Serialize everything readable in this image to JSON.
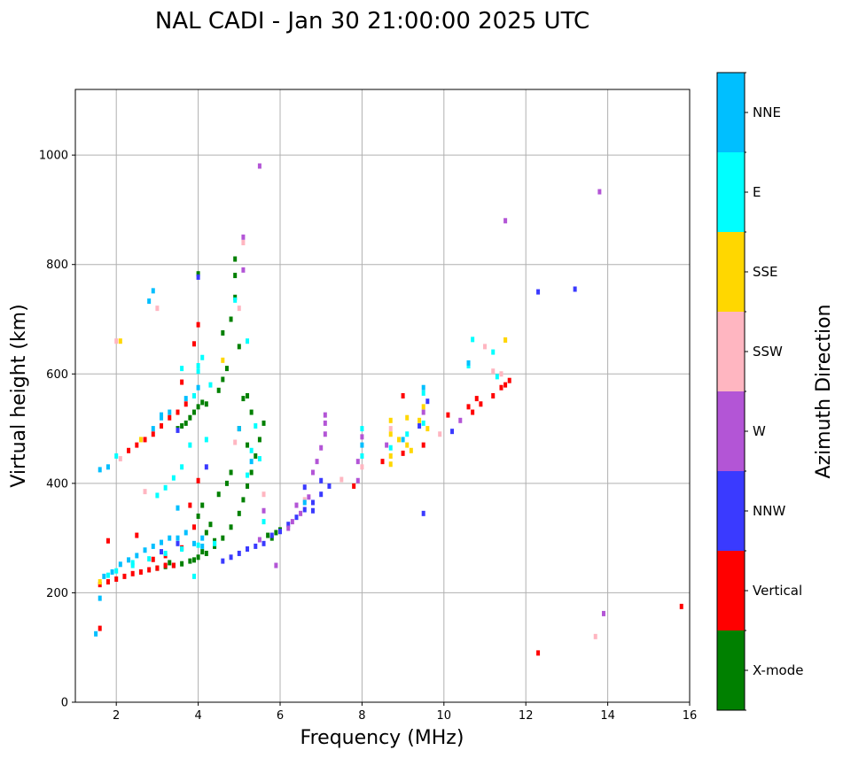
{
  "chart_data": {
    "type": "scatter",
    "title": "NAL CADI - Jan 30 21:00:00 2025 UTC",
    "xlabel": "Frequency (MHz)",
    "ylabel": "Virtual height (km)",
    "xlim": [
      1,
      16
    ],
    "ylim": [
      0,
      1120
    ],
    "x_ticks": [
      2,
      4,
      6,
      8,
      10,
      12,
      14,
      16
    ],
    "y_ticks": [
      0,
      200,
      400,
      600,
      800,
      1000
    ],
    "grid": true,
    "colorbar": {
      "label": "Azimuth Direction",
      "categories": [
        {
          "name": "X-mode",
          "color": "#008000"
        },
        {
          "name": "Vertical",
          "color": "#ff0000"
        },
        {
          "name": "NNW",
          "color": "#3a3aff"
        },
        {
          "name": "W",
          "color": "#b355d6"
        },
        {
          "name": "SSW",
          "color": "#ffb6c1"
        },
        {
          "name": "SSE",
          "color": "#ffd700"
        },
        {
          "name": "E",
          "color": "#00ffff"
        },
        {
          "name": "NNE",
          "color": "#00bfff"
        }
      ]
    },
    "series": [
      {
        "name": "X-mode",
        "points": [
          [
            3.0,
            245
          ],
          [
            3.2,
            248
          ],
          [
            3.4,
            250
          ],
          [
            3.6,
            253
          ],
          [
            3.8,
            258
          ],
          [
            4.0,
            265
          ],
          [
            4.2,
            272
          ],
          [
            4.4,
            285
          ],
          [
            4.6,
            300
          ],
          [
            4.8,
            320
          ],
          [
            5.0,
            345
          ],
          [
            5.1,
            370
          ],
          [
            5.2,
            395
          ],
          [
            5.3,
            420
          ],
          [
            5.4,
            450
          ],
          [
            5.5,
            480
          ],
          [
            5.6,
            510
          ],
          [
            5.8,
            300
          ],
          [
            5.9,
            310
          ],
          [
            6.0,
            315
          ],
          [
            3.5,
            500
          ],
          [
            3.6,
            505
          ],
          [
            3.7,
            510
          ],
          [
            3.8,
            520
          ],
          [
            3.9,
            530
          ],
          [
            4.0,
            540
          ],
          [
            4.1,
            548
          ],
          [
            4.2,
            545
          ],
          [
            4.5,
            570
          ],
          [
            4.6,
            590
          ],
          [
            4.7,
            610
          ],
          [
            4.8,
            700
          ],
          [
            4.9,
            740
          ],
          [
            4.9,
            780
          ],
          [
            4.9,
            810
          ],
          [
            5.0,
            650
          ],
          [
            5.1,
            555
          ],
          [
            5.2,
            560
          ],
          [
            4.0,
            783
          ],
          [
            4.6,
            675
          ],
          [
            4.4,
            295
          ],
          [
            4.2,
            310
          ],
          [
            4.3,
            325
          ],
          [
            4.0,
            340
          ],
          [
            4.1,
            360
          ],
          [
            4.5,
            380
          ],
          [
            4.7,
            400
          ],
          [
            4.8,
            420
          ],
          [
            5.2,
            470
          ],
          [
            5.0,
            500
          ],
          [
            5.3,
            530
          ],
          [
            3.9,
            260
          ],
          [
            4.1,
            275
          ],
          [
            3.3,
            255
          ],
          [
            5.7,
            305
          ]
        ]
      },
      {
        "name": "Vertical",
        "points": [
          [
            1.6,
            215
          ],
          [
            1.8,
            220
          ],
          [
            2.0,
            225
          ],
          [
            2.2,
            230
          ],
          [
            2.4,
            235
          ],
          [
            2.6,
            238
          ],
          [
            2.8,
            242
          ],
          [
            3.0,
            245
          ],
          [
            3.2,
            250
          ],
          [
            3.4,
            250
          ],
          [
            2.3,
            460
          ],
          [
            2.5,
            470
          ],
          [
            2.7,
            480
          ],
          [
            2.9,
            490
          ],
          [
            3.1,
            505
          ],
          [
            3.3,
            520
          ],
          [
            3.5,
            530
          ],
          [
            3.7,
            545
          ],
          [
            3.9,
            560
          ],
          [
            4.0,
            690
          ],
          [
            3.9,
            655
          ],
          [
            3.6,
            585
          ],
          [
            4.0,
            405
          ],
          [
            3.8,
            360
          ],
          [
            3.9,
            320
          ],
          [
            2.5,
            305
          ],
          [
            1.8,
            295
          ],
          [
            1.6,
            135
          ],
          [
            7.8,
            395
          ],
          [
            8.5,
            440
          ],
          [
            9.0,
            455
          ],
          [
            9.5,
            470
          ],
          [
            10.1,
            525
          ],
          [
            10.6,
            540
          ],
          [
            10.9,
            545
          ],
          [
            11.2,
            560
          ],
          [
            11.4,
            575
          ],
          [
            11.5,
            580
          ],
          [
            11.6,
            588
          ],
          [
            12.3,
            90
          ],
          [
            15.8,
            175
          ],
          [
            9.0,
            560
          ],
          [
            10.8,
            555
          ],
          [
            3.2,
            268
          ],
          [
            3.6,
            282
          ],
          [
            2.9,
            261
          ],
          [
            10.7,
            530
          ]
        ]
      },
      {
        "name": "NNW",
        "points": [
          [
            4.6,
            258
          ],
          [
            4.8,
            265
          ],
          [
            5.0,
            272
          ],
          [
            5.2,
            280
          ],
          [
            5.4,
            285
          ],
          [
            5.6,
            290
          ],
          [
            5.8,
            305
          ],
          [
            6.0,
            312
          ],
          [
            6.2,
            325
          ],
          [
            6.4,
            338
          ],
          [
            6.6,
            352
          ],
          [
            6.8,
            365
          ],
          [
            7.0,
            380
          ],
          [
            7.2,
            395
          ],
          [
            4.2,
            430
          ],
          [
            6.6,
            393
          ],
          [
            9.5,
            345
          ],
          [
            12.3,
            750
          ],
          [
            13.2,
            755
          ],
          [
            4.0,
            777
          ],
          [
            3.5,
            497
          ],
          [
            9.4,
            505
          ],
          [
            10.2,
            495
          ],
          [
            7.0,
            405
          ],
          [
            6.8,
            350
          ],
          [
            3.1,
            275
          ],
          [
            3.5,
            290
          ],
          [
            9.6,
            550
          ]
        ]
      },
      {
        "name": "W",
        "points": [
          [
            5.5,
            980
          ],
          [
            5.1,
            850
          ],
          [
            5.1,
            790
          ],
          [
            5.5,
            297
          ],
          [
            5.9,
            250
          ],
          [
            6.3,
            330
          ],
          [
            6.5,
            345
          ],
          [
            6.8,
            420
          ],
          [
            6.9,
            440
          ],
          [
            7.0,
            465
          ],
          [
            7.1,
            490
          ],
          [
            7.1,
            525
          ],
          [
            7.9,
            405
          ],
          [
            7.9,
            440
          ],
          [
            8.0,
            485
          ],
          [
            11.5,
            880
          ],
          [
            13.8,
            933
          ],
          [
            13.9,
            162
          ],
          [
            5.6,
            350
          ],
          [
            6.4,
            360
          ],
          [
            6.7,
            375
          ],
          [
            7.1,
            510
          ],
          [
            8.6,
            470
          ],
          [
            9.5,
            530
          ],
          [
            10.4,
            515
          ],
          [
            6.2,
            318
          ]
        ]
      },
      {
        "name": "SSW",
        "points": [
          [
            2.1,
            445
          ],
          [
            2.7,
            385
          ],
          [
            5.6,
            380
          ],
          [
            7.5,
            407
          ],
          [
            8.0,
            430
          ],
          [
            8.7,
            500
          ],
          [
            11.2,
            605
          ],
          [
            11.4,
            600
          ],
          [
            11.5,
            662
          ],
          [
            13.7,
            120
          ],
          [
            5.1,
            840
          ],
          [
            5.0,
            720
          ],
          [
            4.9,
            475
          ],
          [
            6.6,
            370
          ],
          [
            3.0,
            720
          ],
          [
            11.0,
            650
          ],
          [
            9.9,
            490
          ],
          [
            2.0,
            660
          ]
        ]
      },
      {
        "name": "SSE",
        "points": [
          [
            1.6,
            220
          ],
          [
            2.1,
            660
          ],
          [
            2.6,
            480
          ],
          [
            8.7,
            435
          ],
          [
            8.7,
            450
          ],
          [
            8.7,
            490
          ],
          [
            8.7,
            515
          ],
          [
            9.1,
            470
          ],
          [
            9.1,
            520
          ],
          [
            9.5,
            540
          ],
          [
            9.4,
            515
          ],
          [
            11.5,
            662
          ],
          [
            4.6,
            625
          ],
          [
            8.9,
            480
          ],
          [
            9.2,
            460
          ],
          [
            9.6,
            500
          ]
        ]
      },
      {
        "name": "E",
        "points": [
          [
            1.8,
            232
          ],
          [
            2.0,
            240
          ],
          [
            2.4,
            250
          ],
          [
            2.8,
            262
          ],
          [
            3.2,
            272
          ],
          [
            3.6,
            280
          ],
          [
            4.0,
            287
          ],
          [
            4.4,
            290
          ],
          [
            3.0,
            378
          ],
          [
            3.2,
            392
          ],
          [
            3.4,
            410
          ],
          [
            3.6,
            430
          ],
          [
            3.8,
            470
          ],
          [
            3.9,
            560
          ],
          [
            4.0,
            605
          ],
          [
            4.0,
            615
          ],
          [
            4.3,
            580
          ],
          [
            4.1,
            630
          ],
          [
            2.0,
            450
          ],
          [
            8.0,
            450
          ],
          [
            8.0,
            500
          ],
          [
            8.7,
            465
          ],
          [
            9.1,
            490
          ],
          [
            9.5,
            510
          ],
          [
            9.5,
            565
          ],
          [
            10.6,
            615
          ],
          [
            10.7,
            663
          ],
          [
            11.2,
            640
          ],
          [
            11.3,
            595
          ],
          [
            5.2,
            660
          ],
          [
            4.9,
            735
          ],
          [
            5.3,
            460
          ],
          [
            5.5,
            445
          ],
          [
            5.4,
            505
          ],
          [
            3.6,
            610
          ],
          [
            2.4,
            255
          ],
          [
            3.9,
            230
          ],
          [
            5.6,
            330
          ],
          [
            5.2,
            415
          ],
          [
            4.2,
            480
          ]
        ]
      },
      {
        "name": "NNE",
        "points": [
          [
            1.5,
            125
          ],
          [
            1.6,
            190
          ],
          [
            1.7,
            230
          ],
          [
            1.9,
            238
          ],
          [
            2.1,
            252
          ],
          [
            2.3,
            260
          ],
          [
            2.5,
            268
          ],
          [
            2.7,
            278
          ],
          [
            2.9,
            285
          ],
          [
            3.1,
            292
          ],
          [
            3.3,
            300
          ],
          [
            3.5,
            300
          ],
          [
            3.7,
            310
          ],
          [
            3.9,
            290
          ],
          [
            4.1,
            300
          ],
          [
            2.9,
            500
          ],
          [
            3.1,
            520
          ],
          [
            3.3,
            530
          ],
          [
            3.7,
            555
          ],
          [
            4.0,
            575
          ],
          [
            2.9,
            752
          ],
          [
            2.8,
            733
          ],
          [
            1.6,
            425
          ],
          [
            1.8,
            430
          ],
          [
            3.5,
            355
          ],
          [
            4.1,
            285
          ],
          [
            8.0,
            470
          ],
          [
            9.0,
            480
          ],
          [
            9.5,
            575
          ],
          [
            10.6,
            620
          ],
          [
            5.0,
            500
          ],
          [
            5.3,
            440
          ],
          [
            6.6,
            365
          ],
          [
            3.1,
            525
          ]
        ]
      }
    ]
  }
}
